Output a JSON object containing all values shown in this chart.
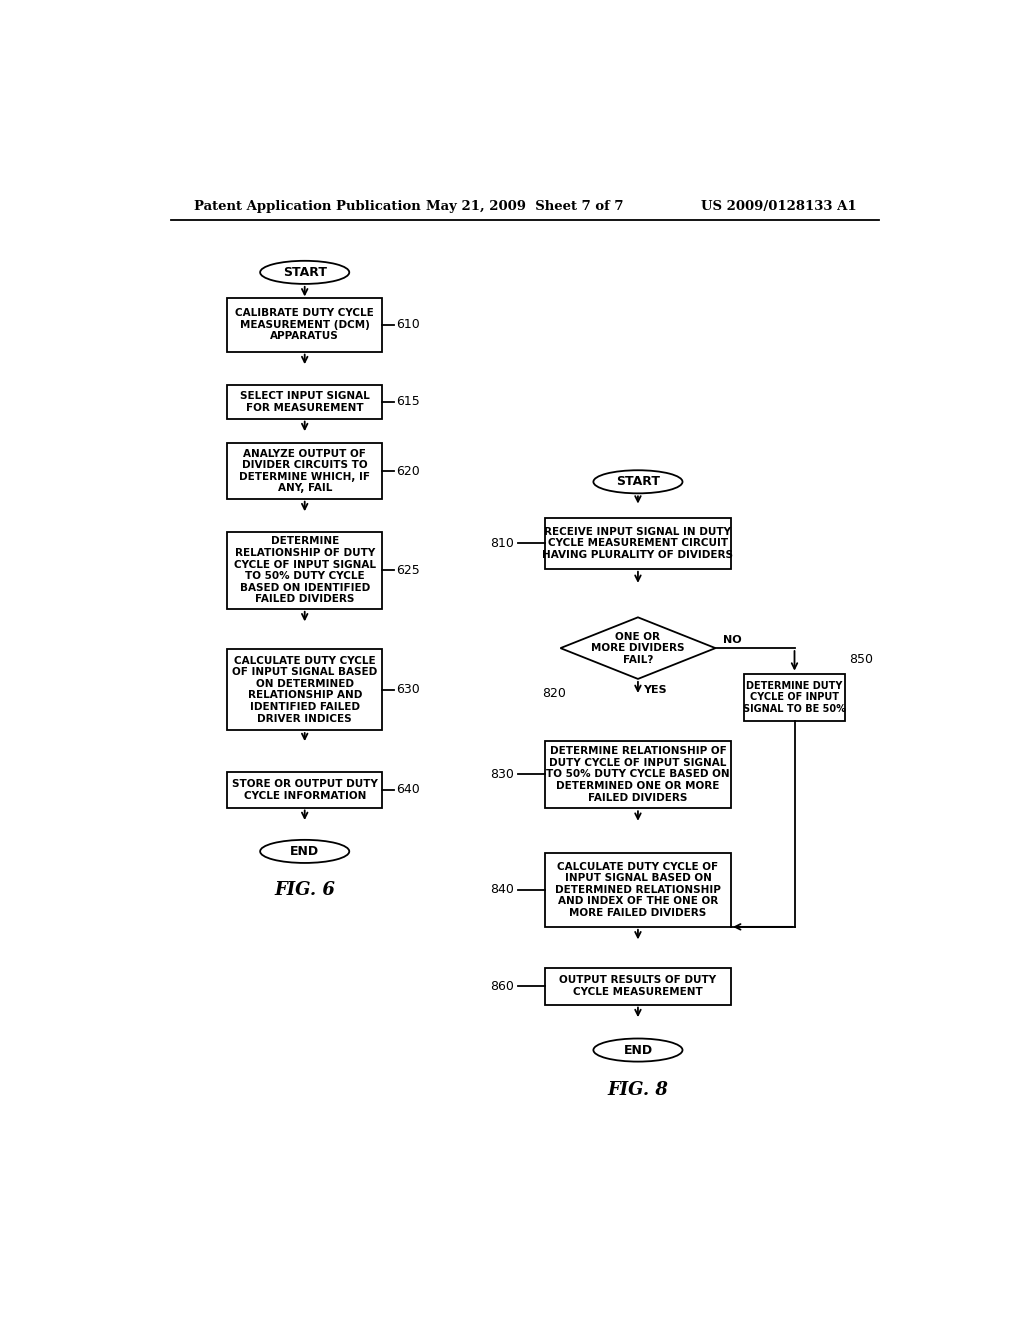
{
  "fig_width": 10.24,
  "fig_height": 13.2,
  "bg_color": "#ffffff",
  "header_text": "Patent Application Publication",
  "header_date": "May 21, 2009  Sheet 7 of 7",
  "header_patent": "US 2009/0128133 A1"
}
